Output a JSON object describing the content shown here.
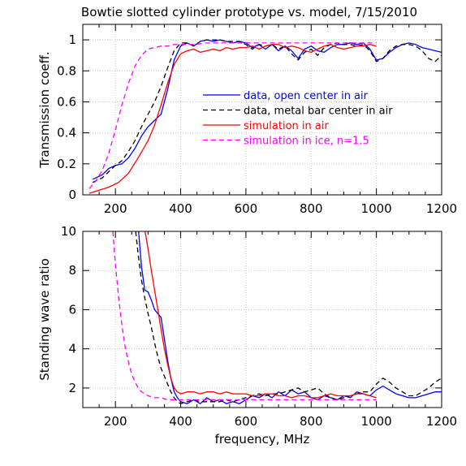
{
  "figure": {
    "title": "Bowtie slotted cylinder prototype vs. model, 7/15/2010"
  },
  "colors": {
    "blue": "#0000ff",
    "black": "#000000",
    "red": "#ff0000",
    "magenta": "#ff00ff",
    "grid": "#c8c8c8"
  },
  "chart_data": [
    {
      "type": "line",
      "title": "Bowtie slotted cylinder prototype vs. model, 7/15/2010",
      "xlabel": "",
      "ylabel": "Transmission coeff.",
      "xlim": [
        100,
        1200
      ],
      "ylim": [
        0,
        1.1
      ],
      "xticks": [
        200,
        400,
        600,
        800,
        1000,
        1200
      ],
      "xtick_labels": [
        "200",
        "400",
        "600",
        "800",
        "1000",
        "1200"
      ],
      "yticks": [
        0,
        0.2,
        0.4,
        0.6,
        0.8,
        1
      ],
      "ytick_labels": [
        "0",
        "0.2",
        "0.4",
        "0.6",
        "0.8",
        "1"
      ],
      "grid": true,
      "legend_position": "center-right",
      "series": [
        {
          "name": "data, open center in air",
          "color": "#0000ff",
          "dash": "solid",
          "x": [
            130,
            160,
            180,
            200,
            220,
            240,
            260,
            280,
            300,
            320,
            340,
            360,
            380,
            400,
            420,
            440,
            460,
            480,
            500,
            520,
            540,
            560,
            580,
            600,
            620,
            640,
            660,
            680,
            700,
            720,
            740,
            760,
            780,
            800,
            820,
            840,
            860,
            880,
            900,
            920,
            940,
            960,
            980,
            1000,
            1020,
            1040,
            1060,
            1080,
            1100,
            1120,
            1140,
            1160,
            1180,
            1200
          ],
          "y": [
            0.1,
            0.13,
            0.17,
            0.19,
            0.2,
            0.24,
            0.3,
            0.38,
            0.44,
            0.48,
            0.52,
            0.68,
            0.87,
            0.96,
            0.98,
            0.96,
            0.99,
            1.0,
            0.99,
            1.0,
            0.99,
            0.98,
            0.99,
            0.98,
            0.95,
            0.97,
            0.94,
            0.97,
            0.93,
            0.96,
            0.93,
            0.88,
            0.94,
            0.96,
            0.93,
            0.92,
            0.95,
            0.97,
            0.97,
            0.98,
            0.97,
            0.98,
            0.94,
            0.87,
            0.88,
            0.92,
            0.95,
            0.97,
            0.98,
            0.97,
            0.95,
            0.94,
            0.93,
            0.92
          ]
        },
        {
          "name": "data, metal bar center in air",
          "color": "#000000",
          "dash": "dashed",
          "x": [
            130,
            160,
            180,
            200,
            220,
            240,
            260,
            280,
            300,
            320,
            340,
            360,
            380,
            400,
            420,
            440,
            460,
            480,
            500,
            520,
            540,
            560,
            580,
            600,
            620,
            640,
            660,
            680,
            700,
            720,
            740,
            760,
            780,
            800,
            820,
            840,
            860,
            880,
            900,
            920,
            940,
            960,
            980,
            1000,
            1020,
            1040,
            1060,
            1080,
            1100,
            1120,
            1140,
            1160,
            1180,
            1200
          ],
          "y": [
            0.08,
            0.11,
            0.15,
            0.19,
            0.22,
            0.28,
            0.35,
            0.44,
            0.52,
            0.6,
            0.7,
            0.82,
            0.93,
            0.98,
            0.98,
            0.96,
            0.99,
            1.0,
            1.0,
            1.0,
            0.99,
            0.99,
            0.99,
            0.97,
            0.94,
            0.97,
            0.96,
            0.97,
            0.94,
            0.96,
            0.91,
            0.87,
            0.92,
            0.94,
            0.9,
            0.95,
            0.97,
            0.98,
            0.97,
            0.97,
            0.96,
            0.97,
            0.93,
            0.86,
            0.88,
            0.93,
            0.96,
            0.97,
            0.97,
            0.96,
            0.93,
            0.88,
            0.86,
            0.9
          ]
        },
        {
          "name": "simulation in air",
          "color": "#ff0000",
          "dash": "solid",
          "x": [
            120,
            150,
            180,
            210,
            240,
            270,
            300,
            320,
            340,
            360,
            380,
            400,
            420,
            440,
            460,
            480,
            500,
            520,
            540,
            560,
            580,
            600,
            620,
            640,
            660,
            680,
            700,
            720,
            740,
            760,
            780,
            800,
            820,
            840,
            860,
            880,
            900,
            920,
            940,
            960,
            980,
            1000
          ],
          "y": [
            0.01,
            0.03,
            0.05,
            0.08,
            0.14,
            0.24,
            0.35,
            0.45,
            0.58,
            0.72,
            0.84,
            0.91,
            0.93,
            0.94,
            0.92,
            0.93,
            0.94,
            0.93,
            0.95,
            0.94,
            0.95,
            0.95,
            0.96,
            0.94,
            0.96,
            0.97,
            0.97,
            0.95,
            0.96,
            0.95,
            0.93,
            0.92,
            0.94,
            0.96,
            0.97,
            0.95,
            0.94,
            0.95,
            0.96,
            0.96,
            0.97,
            0.96
          ]
        },
        {
          "name": "simulation in ice, n=1.5",
          "color": "#ff00ff",
          "dash": "dashed",
          "x": [
            120,
            140,
            160,
            180,
            200,
            220,
            240,
            260,
            280,
            300,
            320,
            340,
            360,
            380,
            400,
            440,
            480,
            520,
            560,
            600,
            640,
            680,
            720,
            760,
            800,
            840,
            880,
            920,
            960,
            1000
          ],
          "y": [
            0.04,
            0.09,
            0.16,
            0.27,
            0.42,
            0.58,
            0.72,
            0.83,
            0.9,
            0.94,
            0.95,
            0.96,
            0.96,
            0.97,
            0.97,
            0.97,
            0.98,
            0.98,
            0.98,
            0.98,
            0.98,
            0.98,
            0.98,
            0.98,
            0.98,
            0.98,
            0.98,
            0.98,
            0.98,
            0.98
          ]
        }
      ]
    },
    {
      "type": "line",
      "title": "",
      "xlabel": "frequency, MHz",
      "ylabel": "Standing wave ratio",
      "xlim": [
        100,
        1200
      ],
      "ylim": [
        1,
        10
      ],
      "xticks": [
        200,
        400,
        600,
        800,
        1000,
        1200
      ],
      "xtick_labels": [
        "200",
        "400",
        "600",
        "800",
        "1000",
        "1200"
      ],
      "yticks": [
        2,
        4,
        6,
        8,
        10
      ],
      "ytick_labels": [
        "2",
        "4",
        "6",
        "8",
        "10"
      ],
      "grid": true,
      "series": [
        {
          "name": "data, open center in air",
          "color": "#0000ff",
          "dash": "solid",
          "x": [
            271,
            280,
            290,
            300,
            310,
            320,
            330,
            340,
            350,
            360,
            370,
            380,
            390,
            400,
            420,
            440,
            460,
            480,
            500,
            520,
            540,
            560,
            580,
            600,
            620,
            640,
            660,
            680,
            700,
            720,
            740,
            760,
            780,
            800,
            820,
            840,
            860,
            880,
            900,
            920,
            940,
            960,
            980,
            1000,
            1020,
            1040,
            1060,
            1080,
            1100,
            1120,
            1140,
            1160,
            1180,
            1200
          ],
          "y": [
            10.0,
            8.2,
            7.0,
            6.9,
            6.5,
            6.0,
            5.8,
            5.6,
            4.5,
            3.4,
            2.5,
            1.8,
            1.5,
            1.3,
            1.2,
            1.4,
            1.2,
            1.5,
            1.3,
            1.4,
            1.2,
            1.3,
            1.2,
            1.4,
            1.6,
            1.5,
            1.7,
            1.5,
            1.8,
            1.6,
            1.9,
            1.7,
            1.8,
            1.5,
            1.4,
            1.6,
            1.5,
            1.4,
            1.6,
            1.5,
            1.8,
            1.7,
            1.6,
            1.9,
            2.1,
            1.9,
            1.7,
            1.6,
            1.5,
            1.5,
            1.6,
            1.7,
            1.8,
            1.8
          ]
        },
        {
          "name": "data, metal bar center in air",
          "color": "#000000",
          "dash": "dashed",
          "x": [
            262,
            270,
            280,
            290,
            300,
            310,
            320,
            330,
            340,
            350,
            360,
            370,
            380,
            390,
            400,
            420,
            440,
            460,
            480,
            500,
            520,
            540,
            560,
            580,
            600,
            620,
            640,
            660,
            680,
            700,
            720,
            740,
            760,
            780,
            800,
            820,
            840,
            860,
            880,
            900,
            920,
            940,
            960,
            980,
            1000,
            1020,
            1040,
            1060,
            1080,
            1100,
            1120,
            1140,
            1160,
            1180,
            1200
          ],
          "y": [
            10.0,
            8.8,
            7.5,
            6.6,
            5.8,
            5.1,
            4.3,
            3.6,
            3.0,
            2.6,
            2.2,
            1.8,
            1.5,
            1.3,
            1.2,
            1.3,
            1.4,
            1.3,
            1.3,
            1.3,
            1.3,
            1.4,
            1.3,
            1.4,
            1.5,
            1.6,
            1.7,
            1.6,
            1.7,
            1.7,
            1.8,
            1.9,
            2.0,
            1.8,
            1.9,
            2.0,
            1.7,
            1.5,
            1.4,
            1.5,
            1.6,
            1.7,
            1.8,
            1.8,
            2.2,
            2.5,
            2.3,
            2.0,
            1.8,
            1.6,
            1.6,
            1.8,
            2.0,
            2.3,
            2.5
          ]
        },
        {
          "name": "simulation in air",
          "color": "#ff0000",
          "dash": "solid",
          "x": [
            291,
            300,
            310,
            320,
            330,
            340,
            350,
            360,
            370,
            380,
            390,
            400,
            420,
            440,
            460,
            480,
            500,
            520,
            540,
            560,
            580,
            600,
            620,
            640,
            660,
            680,
            700,
            720,
            740,
            760,
            780,
            800,
            820,
            840,
            860,
            880,
            900,
            920,
            940,
            960,
            980,
            1000
          ],
          "y": [
            10.0,
            9.1,
            8.0,
            7.0,
            6.0,
            5.0,
            4.0,
            3.2,
            2.5,
            2.0,
            1.8,
            1.7,
            1.8,
            1.8,
            1.7,
            1.8,
            1.8,
            1.7,
            1.8,
            1.7,
            1.7,
            1.7,
            1.6,
            1.6,
            1.7,
            1.7,
            1.6,
            1.6,
            1.5,
            1.6,
            1.6,
            1.5,
            1.5,
            1.6,
            1.7,
            1.6,
            1.6,
            1.6,
            1.7,
            1.7,
            1.6,
            1.5
          ]
        },
        {
          "name": "simulation in ice, n=1.5",
          "color": "#ff00ff",
          "dash": "dashed",
          "x": [
            192,
            200,
            210,
            220,
            230,
            240,
            250,
            260,
            270,
            280,
            290,
            300,
            320,
            340,
            360,
            380,
            400,
            440,
            480,
            520,
            560,
            600,
            640,
            680,
            720,
            760,
            800,
            840,
            880,
            920,
            960,
            1000
          ],
          "y": [
            10.0,
            8.3,
            6.6,
            5.2,
            4.1,
            3.3,
            2.7,
            2.3,
            2.0,
            1.8,
            1.7,
            1.6,
            1.5,
            1.5,
            1.4,
            1.4,
            1.4,
            1.4,
            1.4,
            1.4,
            1.4,
            1.4,
            1.4,
            1.4,
            1.4,
            1.4,
            1.4,
            1.4,
            1.4,
            1.4,
            1.4,
            1.4
          ]
        }
      ]
    }
  ]
}
